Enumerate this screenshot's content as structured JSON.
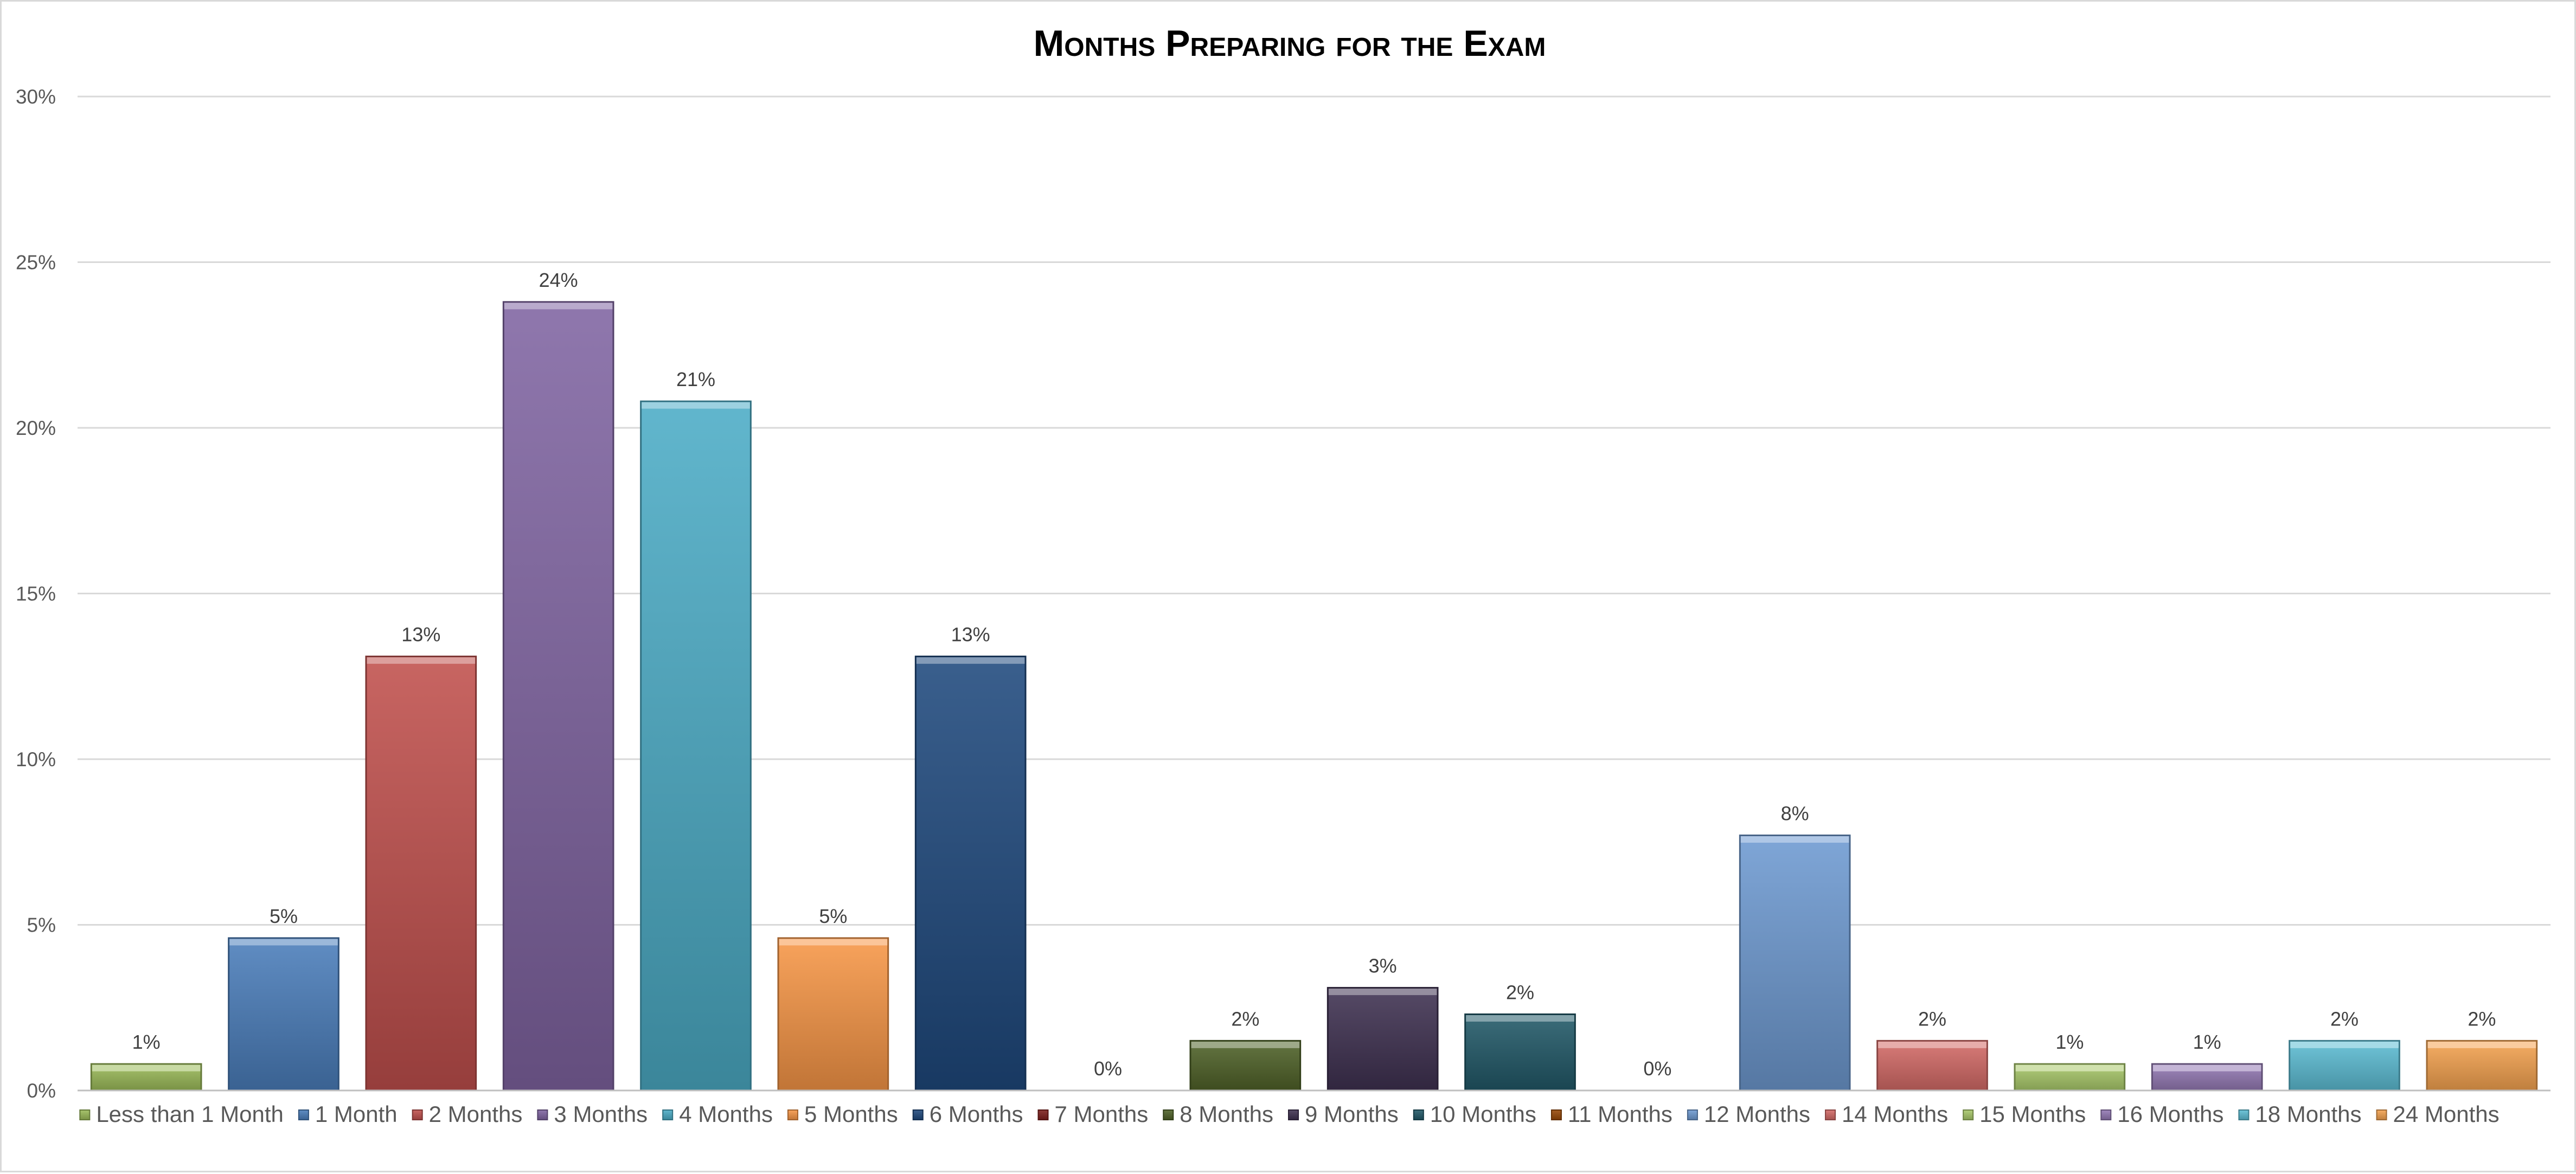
{
  "chart_data": {
    "type": "bar",
    "title": "Months Preparing for the Exam",
    "xlabel": "",
    "ylabel": "",
    "ylim": [
      0,
      30
    ],
    "y_ticks": [
      "0%",
      "5%",
      "10%",
      "15%",
      "20%",
      "25%",
      "30%"
    ],
    "grid": true,
    "legend_position": "bottom",
    "categories": [
      "Less than 1 Month",
      "1 Month",
      "2 Months",
      "3 Months",
      "4 Months",
      "5 Months",
      "6 Months",
      "7 Months",
      "8 Months",
      "9 Months",
      "10 Months",
      "11 Months",
      "12 Months",
      "14 Months",
      "15 Months",
      "16 Months",
      "18 Months",
      "24 Months"
    ],
    "values": [
      0.8,
      4.6,
      13.1,
      23.8,
      20.8,
      4.6,
      13.1,
      0,
      1.5,
      3.1,
      2.3,
      0,
      7.7,
      1.5,
      0.8,
      0.8,
      1.5,
      1.5
    ],
    "data_labels": [
      "1%",
      "5%",
      "13%",
      "24%",
      "21%",
      "5%",
      "13%",
      "0%",
      "2%",
      "3%",
      "2%",
      "0%",
      "8%",
      "2%",
      "1%",
      "1%",
      "2%",
      "2%"
    ],
    "colors": [
      "#9bbb59",
      "#4a7ebb",
      "#c0504d",
      "#8064a2",
      "#4bacc6",
      "#f79646",
      "#1f497d",
      "#7f1f1c",
      "#4f6228",
      "#3f3151",
      "#215968",
      "#984807",
      "#6e9ad1",
      "#d46a67",
      "#a9c96a",
      "#9379b4",
      "#5cbdd4",
      "#f5a350"
    ]
  }
}
